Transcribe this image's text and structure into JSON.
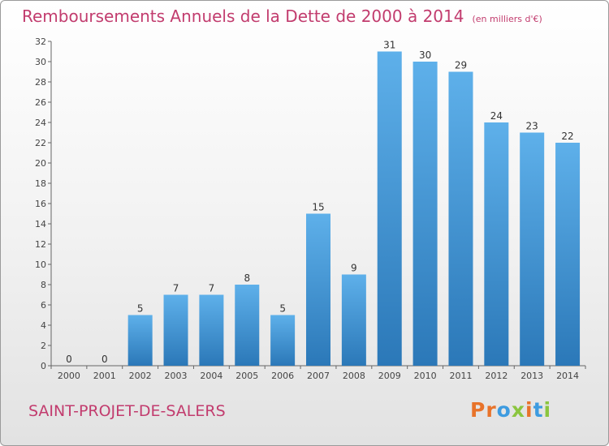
{
  "header": {
    "title": "Remboursements Annuels de la Dette de 2000 à 2014",
    "unit": "(en milliers d'€)"
  },
  "footer": {
    "commune": "SAINT-PROJET-DE-SALERS",
    "logo": [
      "P",
      "r",
      "o",
      "x",
      "i",
      "t",
      "i"
    ]
  },
  "colors": {
    "accent": "#c23c6e",
    "bar_top": "#5eb0ea",
    "bar_bottom": "#2b78b8",
    "logo_letters": [
      "#e8732a",
      "#e8732a",
      "#3d9be0",
      "#8bc53f",
      "#e8732a",
      "#3d9be0",
      "#8bc53f"
    ]
  },
  "chart_data": {
    "type": "bar",
    "categories": [
      "2000",
      "2001",
      "2002",
      "2003",
      "2004",
      "2005",
      "2006",
      "2007",
      "2008",
      "2009",
      "2010",
      "2011",
      "2012",
      "2013",
      "2014"
    ],
    "values": [
      0,
      0,
      5,
      7,
      7,
      8,
      5,
      15,
      9,
      31,
      30,
      29,
      24,
      23,
      22
    ],
    "data_labels": [
      "0",
      "0",
      "5",
      "7",
      "7",
      "8",
      "5",
      "15",
      "9",
      "31",
      "30",
      "29",
      "24",
      "23",
      "22"
    ],
    "yticks": [
      "0",
      "2",
      "4",
      "6",
      "8",
      "10",
      "12",
      "14",
      "16",
      "18",
      "20",
      "22",
      "24",
      "26",
      "28",
      "30",
      "32"
    ],
    "ylim": [
      0,
      32
    ],
    "grid": false,
    "legend": "none"
  }
}
